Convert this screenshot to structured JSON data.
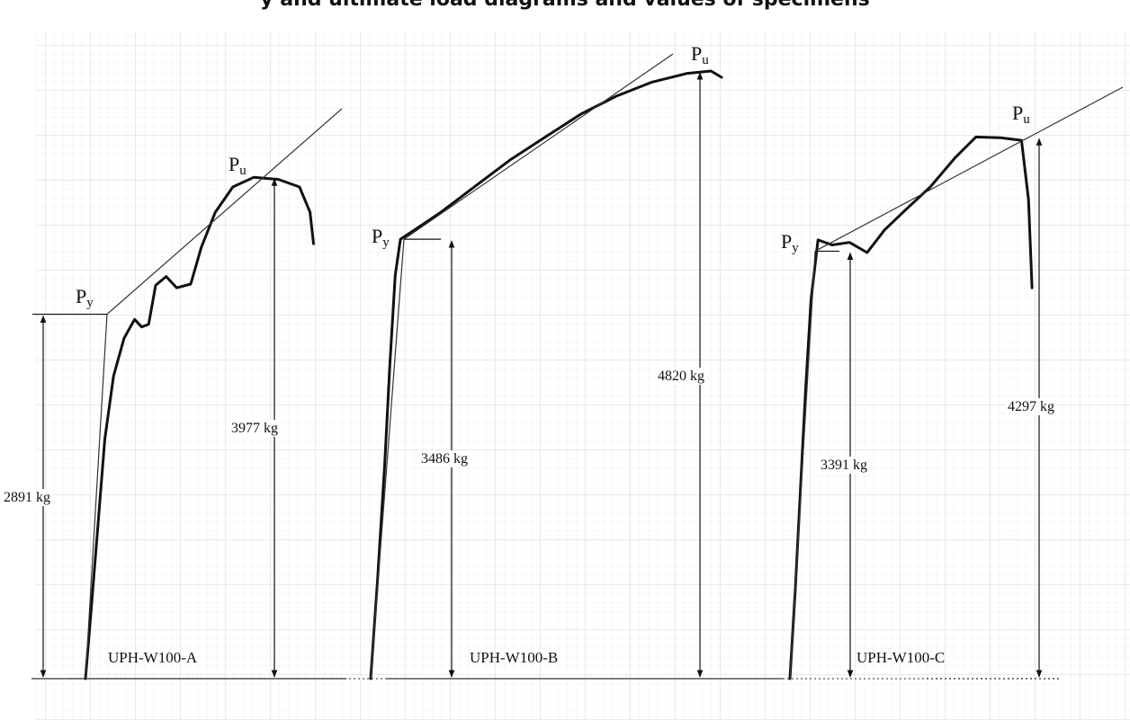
{
  "title": "y and ultimate load diagrams and values of specimens",
  "chart_data": {
    "type": "line",
    "title": "y and ultimate load diagrams and values of specimens",
    "xlabel": "",
    "ylabel": "",
    "grid": true,
    "units": "kg",
    "yield_symbol": "P",
    "yield_subscript": "y",
    "ultimate_symbol": "P",
    "ultimate_subscript": "u",
    "ylim": [
      0,
      5000
    ],
    "specimens": [
      {
        "name": "UPH-W100-A",
        "yield_load": 2891,
        "yield_label": "2891 kg",
        "ultimate_load": 3977,
        "ultimate_label": "3977 kg",
        "curve": [
          [
            0,
            0
          ],
          [
            0.3,
            500
          ],
          [
            0.7,
            1200
          ],
          [
            1.1,
            1900
          ],
          [
            1.6,
            2400
          ],
          [
            2.2,
            2700
          ],
          [
            2.8,
            2850
          ],
          [
            3.2,
            2790
          ],
          [
            3.6,
            2810
          ],
          [
            4.0,
            3120
          ],
          [
            4.6,
            3190
          ],
          [
            5.2,
            3100
          ],
          [
            6.0,
            3130
          ],
          [
            6.6,
            3420
          ],
          [
            7.4,
            3700
          ],
          [
            8.4,
            3900
          ],
          [
            9.6,
            3977
          ],
          [
            11.0,
            3960
          ],
          [
            12.2,
            3900
          ],
          [
            12.8,
            3700
          ],
          [
            13.0,
            3450
          ]
        ]
      },
      {
        "name": "UPH-W100-B",
        "yield_load": 3486,
        "yield_label": "3486 kg",
        "ultimate_load": 4820,
        "ultimate_label": "4820 kg",
        "curve": [
          [
            0,
            0
          ],
          [
            0.4,
            800
          ],
          [
            0.8,
            1700
          ],
          [
            1.1,
            2500
          ],
          [
            1.4,
            3200
          ],
          [
            1.7,
            3486
          ],
          [
            2.5,
            3560
          ],
          [
            4,
            3700
          ],
          [
            6,
            3910
          ],
          [
            8,
            4120
          ],
          [
            10,
            4300
          ],
          [
            12,
            4480
          ],
          [
            14,
            4620
          ],
          [
            16,
            4730
          ],
          [
            18,
            4800
          ],
          [
            19.4,
            4820
          ],
          [
            20.0,
            4770
          ]
        ]
      },
      {
        "name": "UPH-W100-C",
        "yield_load": 3391,
        "yield_label": "3391 kg",
        "ultimate_load": 4297,
        "ultimate_label": "4297 kg",
        "curve": [
          [
            0,
            0
          ],
          [
            0.3,
            700
          ],
          [
            0.6,
            1500
          ],
          [
            0.9,
            2300
          ],
          [
            1.2,
            3000
          ],
          [
            1.6,
            3480
          ],
          [
            2.4,
            3440
          ],
          [
            3.4,
            3460
          ],
          [
            4.4,
            3380
          ],
          [
            5.4,
            3560
          ],
          [
            6.6,
            3720
          ],
          [
            8.0,
            3900
          ],
          [
            9.4,
            4130
          ],
          [
            10.6,
            4297
          ],
          [
            12.0,
            4290
          ],
          [
            13.2,
            4270
          ],
          [
            13.6,
            3800
          ],
          [
            13.8,
            3100
          ]
        ]
      }
    ]
  }
}
